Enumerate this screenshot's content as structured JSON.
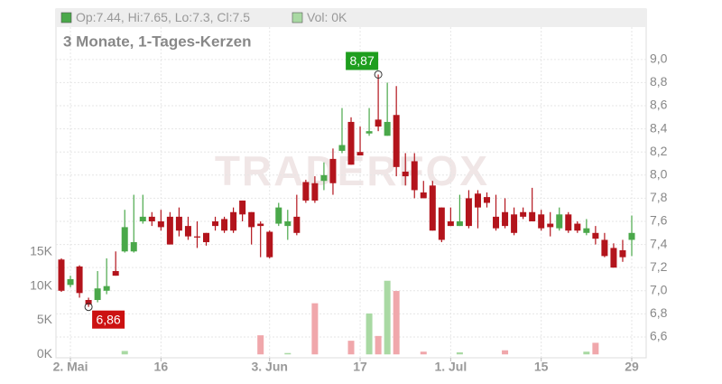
{
  "chart_data": {
    "type": "candlestick",
    "title": "3 Monate, 1-Tages-Kerzen",
    "legend_text": "Op:7.44, Hi:7.65, Lo:7.3, Cl:7.5",
    "volume_legend": "Vol: 0K",
    "watermark": "TRADERFOX",
    "up_color": "#4aa84a",
    "down_color": "#b3141c",
    "vol_up_color": "#a9d9a3",
    "vol_down_color": "#f0a7ab",
    "categories": [
      null,
      "2. Mai",
      null,
      null,
      null,
      null,
      null,
      null,
      null,
      null,
      null,
      "16",
      null,
      null,
      null,
      null,
      null,
      null,
      null,
      null,
      null,
      null,
      null,
      "3. Jun",
      null,
      null,
      null,
      null,
      null,
      null,
      null,
      null,
      null,
      "17",
      null,
      null,
      null,
      null,
      null,
      null,
      null,
      null,
      null,
      "1. Jul",
      null,
      null,
      null,
      null,
      null,
      null,
      null,
      null,
      null,
      "15",
      null,
      null,
      null,
      null,
      null,
      null,
      null,
      null,
      null,
      "29"
    ],
    "open": [
      7.27,
      7.05,
      7.21,
      6.92,
      6.92,
      7.0,
      7.17,
      7.34,
      7.34,
      7.6,
      7.64,
      7.6,
      7.64,
      7.64,
      7.56,
      7.47,
      7.5,
      7.6,
      7.62,
      7.68,
      7.78,
      7.68,
      7.58,
      7.51,
      7.58,
      7.56,
      7.64,
      7.94,
      7.93,
      7.95,
      8.14,
      8.21,
      8.46,
      8.2,
      8.36,
      8.48,
      8.34,
      8.52,
      8.03,
      8.12,
      7.85,
      7.91,
      7.72,
      7.6,
      7.56,
      7.8,
      7.84,
      7.81,
      7.64,
      7.68,
      7.66,
      7.68,
      7.68,
      7.66,
      7.58,
      7.54,
      7.66,
      7.58,
      7.5,
      7.5,
      7.44,
      7.37,
      7.35,
      7.44
    ],
    "high": [
      7.28,
      7.13,
      7.22,
      6.94,
      7.17,
      7.28,
      7.34,
      7.7,
      7.83,
      7.83,
      7.68,
      7.7,
      7.68,
      7.72,
      7.64,
      7.6,
      7.5,
      7.64,
      7.64,
      7.72,
      7.78,
      7.68,
      7.6,
      7.52,
      7.76,
      7.7,
      7.83,
      7.96,
      7.99,
      8.11,
      8.23,
      8.58,
      8.5,
      8.42,
      8.58,
      8.87,
      8.8,
      8.77,
      8.19,
      8.19,
      7.95,
      7.95,
      7.72,
      7.72,
      7.83,
      7.87,
      7.87,
      7.85,
      7.83,
      7.8,
      7.72,
      7.72,
      7.89,
      7.7,
      7.68,
      7.72,
      7.68,
      7.6,
      7.62,
      7.56,
      7.5,
      7.41,
      7.44,
      7.65
    ],
    "low": [
      6.99,
      7.03,
      6.94,
      6.86,
      6.9,
      6.97,
      7.13,
      7.33,
      7.33,
      7.58,
      7.56,
      7.52,
      7.4,
      7.47,
      7.44,
      7.37,
      7.39,
      7.52,
      7.5,
      7.5,
      7.6,
      7.4,
      7.29,
      7.28,
      7.56,
      7.44,
      7.48,
      7.76,
      7.76,
      7.87,
      7.83,
      8.19,
      8.09,
      8.17,
      8.34,
      8.38,
      8.34,
      7.99,
      7.91,
      7.8,
      7.8,
      7.52,
      7.42,
      7.56,
      7.56,
      7.54,
      7.54,
      7.72,
      7.52,
      7.54,
      7.48,
      7.62,
      7.6,
      7.52,
      7.47,
      7.52,
      7.5,
      7.5,
      7.48,
      7.4,
      7.29,
      7.2,
      7.25,
      7.3
    ],
    "close": [
      7.0,
      7.1,
      6.98,
      6.88,
      7.02,
      7.04,
      7.13,
      7.55,
      7.42,
      7.64,
      7.6,
      7.55,
      7.4,
      7.52,
      7.47,
      7.46,
      7.42,
      7.56,
      7.52,
      7.52,
      7.66,
      7.55,
      7.56,
      7.29,
      7.72,
      7.6,
      7.5,
      7.78,
      7.78,
      8.0,
      7.93,
      8.26,
      8.09,
      8.17,
      8.38,
      8.42,
      8.46,
      8.07,
      7.99,
      7.87,
      7.8,
      7.52,
      7.44,
      7.56,
      7.6,
      7.56,
      7.72,
      7.76,
      7.54,
      7.56,
      7.5,
      7.64,
      7.6,
      7.54,
      7.55,
      7.66,
      7.52,
      7.52,
      7.54,
      7.45,
      7.3,
      7.2,
      7.29,
      7.5
    ],
    "volume": [
      0,
      0,
      0,
      0,
      0,
      0,
      0,
      500,
      0,
      0,
      0,
      0,
      0,
      0,
      0,
      0,
      0,
      0,
      0,
      0,
      0,
      0,
      2800,
      0,
      0,
      200,
      0,
      0,
      7500,
      0,
      0,
      0,
      2000,
      0,
      6000,
      2700,
      10800,
      9300,
      0,
      0,
      400,
      0,
      0,
      0,
      300,
      0,
      0,
      0,
      0,
      600,
      0,
      0,
      0,
      0,
      0,
      0,
      0,
      0,
      400,
      1700,
      0,
      0,
      0,
      0
    ],
    "max_label": {
      "value": 8.87,
      "label": "8,87"
    },
    "min_label": {
      "value": 6.86,
      "label": "6,86"
    },
    "ylim": [
      6.42,
      9.28
    ],
    "yticks": [
      {
        "value": 6.6,
        "label": "6,6"
      },
      {
        "value": 6.8,
        "label": "6,8"
      },
      {
        "value": 7.0,
        "label": "7,0"
      },
      {
        "value": 7.2,
        "label": "7,2"
      },
      {
        "value": 7.4,
        "label": "7,4"
      },
      {
        "value": 7.6,
        "label": "7,6"
      },
      {
        "value": 7.8,
        "label": "7,8"
      },
      {
        "value": 8.0,
        "label": "8,0"
      },
      {
        "value": 8.2,
        "label": "8,2"
      },
      {
        "value": 8.4,
        "label": "8,4"
      },
      {
        "value": 8.6,
        "label": "8,6"
      },
      {
        "value": 8.8,
        "label": "8,8"
      },
      {
        "value": 9.0,
        "label": "9,0"
      }
    ],
    "y2lim": [
      -500,
      48000
    ],
    "y2ticks": [
      {
        "value": 0,
        "label": "0K"
      },
      {
        "value": 5000,
        "label": "5K"
      },
      {
        "value": 10000,
        "label": "10K"
      },
      {
        "value": 15000,
        "label": "15K"
      }
    ],
    "grid": true
  }
}
